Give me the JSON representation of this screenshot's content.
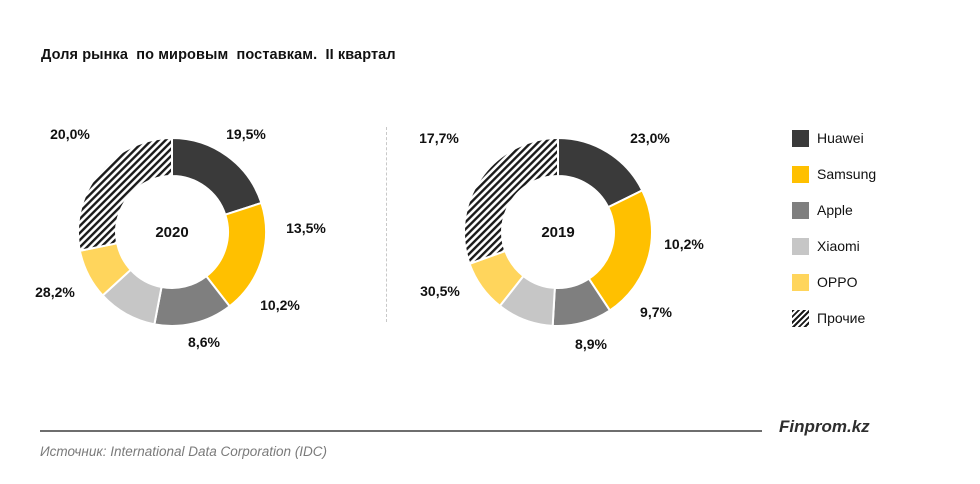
{
  "title": "Доля рынка  по мировым  поставкам.  II квартал",
  "chart_data": [
    {
      "type": "pie",
      "center_label": "2020",
      "categories": [
        "Huawei",
        "Samsung",
        "Apple",
        "Xiaomi",
        "OPPO",
        "Прочие"
      ],
      "values": [
        20.0,
        19.5,
        13.5,
        10.2,
        8.6,
        28.2
      ],
      "labels": [
        "20,0%",
        "19,5%",
        "13,5%",
        "10,2%",
        "8,6%",
        "28,2%"
      ]
    },
    {
      "type": "pie",
      "center_label": "2019",
      "categories": [
        "Huawei",
        "Samsung",
        "Apple",
        "Xiaomi",
        "OPPO",
        "Прочие"
      ],
      "values": [
        17.7,
        23.0,
        10.2,
        9.7,
        8.9,
        30.5
      ],
      "labels": [
        "17,7%",
        "23,0%",
        "10,2%",
        "9,7%",
        "8,9%",
        "30,5%"
      ]
    }
  ],
  "legend": [
    {
      "label": "Huawei",
      "color": "#3a3a3a"
    },
    {
      "label": "Samsung",
      "color": "#ffc000"
    },
    {
      "label": "Apple",
      "color": "#7f7f7f"
    },
    {
      "label": "Xiaomi",
      "color": "#c6c6c6"
    },
    {
      "label": "OPPO",
      "color": "#ffd55c"
    },
    {
      "label": "Прочие",
      "color": "hatch"
    }
  ],
  "brand": "Finprom.kz",
  "source": "Источник: International Data Corporation (IDC)"
}
